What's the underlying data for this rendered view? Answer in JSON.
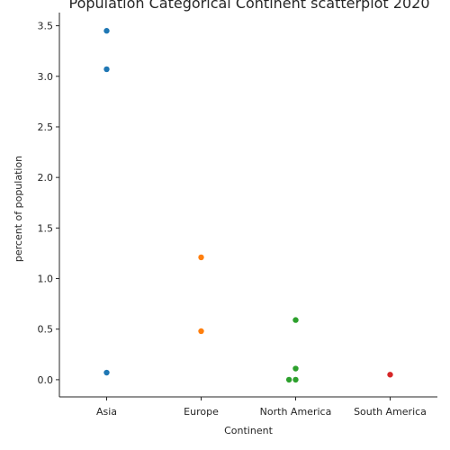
{
  "chart_data": {
    "type": "scatter",
    "title": "Population Categorical Continent scatterplot 2020",
    "xlabel": "Continent",
    "ylabel": "percent of population",
    "categories": [
      "Asia",
      "Europe",
      "North America",
      "South America"
    ],
    "ylim": [
      -0.17,
      3.63
    ],
    "yticks": [
      "0.0",
      "0.5",
      "1.0",
      "1.5",
      "2.0",
      "2.5",
      "3.0",
      "3.5"
    ],
    "grid": false,
    "series": [
      {
        "category": "Asia",
        "color": "#1f77b4",
        "points": [
          {
            "x": 0,
            "y": 3.45
          },
          {
            "x": 0,
            "y": 3.07
          },
          {
            "x": 0,
            "y": 0.07
          }
        ]
      },
      {
        "category": "Europe",
        "color": "#ff7f0e",
        "points": [
          {
            "x": 1,
            "y": 1.21
          },
          {
            "x": 1,
            "y": 0.48
          }
        ]
      },
      {
        "category": "North America",
        "color": "#2ca02c",
        "points": [
          {
            "x": 2,
            "y": 0.59
          },
          {
            "x": 2,
            "y": 0.11
          },
          {
            "x": 1.93,
            "y": 0.0
          },
          {
            "x": 2,
            "y": 0.0
          }
        ]
      },
      {
        "category": "South America",
        "color": "#d62728",
        "points": [
          {
            "x": 3,
            "y": 0.05
          }
        ]
      }
    ]
  }
}
